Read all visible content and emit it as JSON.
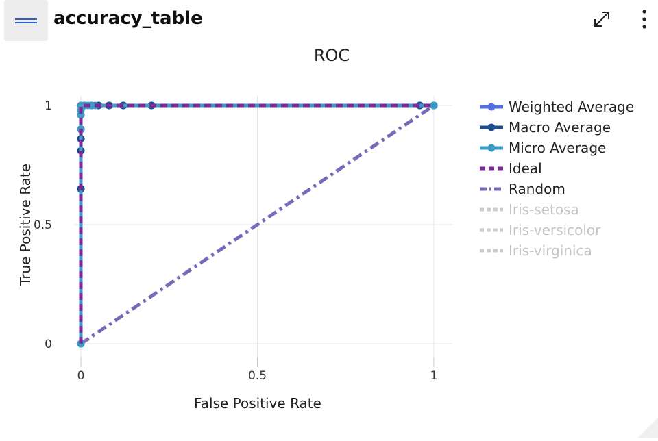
{
  "header": {
    "title": "accuracy_table",
    "menu_icon": "hamburger-icon",
    "expand_icon": "expand-icon",
    "more_icon": "more-vertical-icon"
  },
  "chart_data": {
    "type": "line",
    "title": "ROC",
    "xlabel": "False Positive Rate",
    "ylabel": "True Positive Rate",
    "xlim": [
      0,
      1
    ],
    "ylim": [
      0,
      1
    ],
    "x_ticks": [
      0,
      0.5,
      1
    ],
    "x_tick_labels": [
      "0",
      "0.5",
      "1"
    ],
    "y_ticks": [
      0,
      0.5,
      1
    ],
    "y_tick_labels": [
      "0",
      "0.5",
      "1"
    ],
    "grid": true,
    "legend_position": "right",
    "series": [
      {
        "name": "Weighted Average",
        "color": "#5470e0",
        "style": "solid-markers",
        "visible": true,
        "x": [
          0,
          0,
          0,
          0,
          0,
          0,
          0,
          0.01,
          0.03,
          0.05,
          0.08,
          0.12,
          0.2,
          0.96,
          1
        ],
        "y": [
          0,
          0.65,
          0.81,
          0.86,
          0.9,
          0.96,
          1,
          1,
          1,
          1,
          1,
          1,
          1,
          1,
          1
        ]
      },
      {
        "name": "Macro Average",
        "color": "#1f4e8c",
        "style": "solid-markers",
        "visible": true,
        "x": [
          0,
          0,
          0,
          0,
          0,
          0,
          0,
          0.01,
          0.03,
          0.05,
          0.08,
          0.12,
          0.2,
          0.96,
          1
        ],
        "y": [
          0,
          0.65,
          0.81,
          0.86,
          0.9,
          0.96,
          1,
          1,
          1,
          1,
          1,
          1,
          1,
          1,
          1
        ]
      },
      {
        "name": "Micro Average",
        "color": "#3a9bc4",
        "style": "solid-markers",
        "visible": true,
        "x": [
          0,
          0,
          0,
          0,
          0,
          0.01,
          0.02,
          0.03,
          0.04,
          1
        ],
        "y": [
          0,
          0.9,
          0.96,
          0.98,
          1,
          1,
          1,
          1,
          1,
          1
        ]
      },
      {
        "name": "Ideal",
        "color": "#7a2a9a",
        "style": "dash",
        "visible": true,
        "x": [
          0,
          0,
          1
        ],
        "y": [
          0,
          1,
          1
        ]
      },
      {
        "name": "Random",
        "color": "#7b68b8",
        "style": "dashdot",
        "visible": true,
        "x": [
          0,
          1
        ],
        "y": [
          0,
          1
        ]
      },
      {
        "name": "Iris-setosa",
        "color": "#cccccc",
        "style": "dot",
        "visible": false,
        "x": [],
        "y": []
      },
      {
        "name": "Iris-versicolor",
        "color": "#cccccc",
        "style": "dot",
        "visible": false,
        "x": [],
        "y": []
      },
      {
        "name": "Iris-virginica",
        "color": "#cccccc",
        "style": "dot",
        "visible": false,
        "x": [],
        "y": []
      }
    ]
  }
}
